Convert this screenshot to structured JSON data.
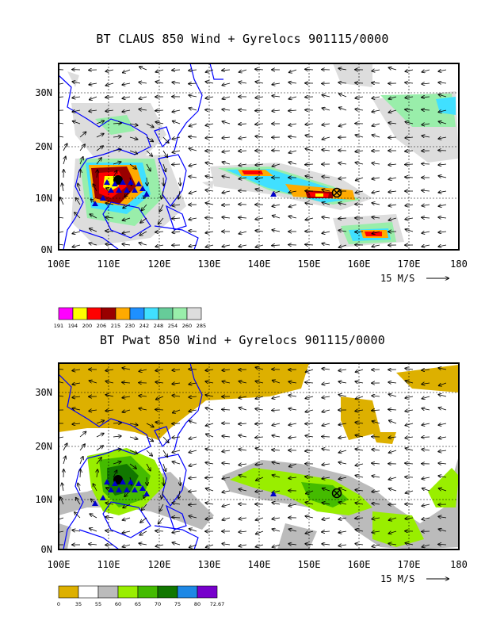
{
  "panels": [
    {
      "title": "BT CLAUS 850 Wind + Gyrelocs 901115/0000",
      "lat_labels": [
        "30N",
        "20N",
        "10N",
        "0N"
      ],
      "lon_labels": [
        "100E",
        "110E",
        "120E",
        "130E",
        "140E",
        "150E",
        "160E",
        "170E",
        "180"
      ],
      "reference_vector": "15 M/S",
      "colorbar_values": [
        "191",
        "194",
        "200",
        "206",
        "215",
        "230",
        "242",
        "248",
        "254",
        "260",
        "285"
      ],
      "colorbar_colors": [
        "#ff00ff",
        "#ffff00",
        "#ff0000",
        "#990000",
        "#ffaa00",
        "#1e90ff",
        "#40e0ff",
        "#66cc99",
        "#99eeaa",
        "#dddddd"
      ]
    },
    {
      "title": "BT Pwat 850 Wind + Gyrelocs 901115/0000",
      "lat_labels": [
        "30N",
        "20N",
        "10N",
        "0N"
      ],
      "lon_labels": [
        "100E",
        "110E",
        "120E",
        "130E",
        "140E",
        "150E",
        "160E",
        "170E",
        "180"
      ],
      "reference_vector": "15 M/S",
      "colorbar_values": [
        "0",
        "35",
        "55",
        "60",
        "65",
        "70",
        "75",
        "80",
        "72.67"
      ],
      "colorbar_colors": [
        "#ddb000",
        "#ffffff",
        "#bbbbbb",
        "#99ee00",
        "#44bb00",
        "#117700",
        "#1e88e5",
        "#7700cc"
      ]
    }
  ]
}
